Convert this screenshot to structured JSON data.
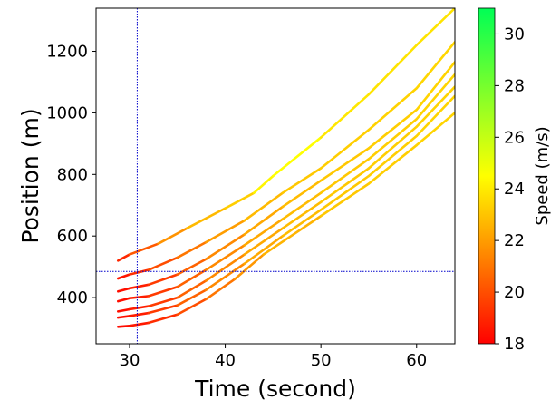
{
  "chart_data": {
    "type": "line",
    "title": "",
    "xlabel": "Time (second)",
    "ylabel": "Position (m)",
    "xlim": [
      26.5,
      64
    ],
    "ylim": [
      250,
      1340
    ],
    "x_ticks": [
      30,
      40,
      50,
      60
    ],
    "y_ticks": [
      400,
      600,
      800,
      1000,
      1200
    ],
    "grid": false,
    "reference_lines": {
      "vertical_x": 30.8,
      "horizontal_y": 485,
      "color": "#0000cc",
      "style": "dotted"
    },
    "colorbar": {
      "label": "Speed (m/s)",
      "range": [
        18,
        31
      ],
      "ticks": [
        18,
        20,
        22,
        24,
        26,
        28,
        30
      ],
      "colormap": [
        "#ff0000",
        "#ffff00",
        "#00ff55"
      ]
    },
    "series": [
      {
        "points": [
          [
            28.8,
            520
          ],
          [
            30,
            540
          ],
          [
            33,
            575
          ],
          [
            36,
            625
          ],
          [
            40,
            690
          ],
          [
            43,
            740
          ],
          [
            45,
            795
          ],
          [
            50,
            920
          ],
          [
            55,
            1060
          ],
          [
            60,
            1220
          ],
          [
            64,
            1340
          ]
        ],
        "speeds": [
          18.5,
          19.5,
          21,
          22.5,
          23,
          23.5,
          25,
          24,
          23.8,
          23.8,
          23.8
        ]
      },
      {
        "points": [
          [
            28.8,
            462
          ],
          [
            30,
            475
          ],
          [
            32,
            490
          ],
          [
            35,
            530
          ],
          [
            38,
            580
          ],
          [
            42,
            650
          ],
          [
            46,
            740
          ],
          [
            50,
            820
          ],
          [
            55,
            945
          ],
          [
            60,
            1080
          ],
          [
            64,
            1230
          ]
        ],
        "speeds": [
          18.2,
          18.8,
          19.5,
          20.5,
          21.5,
          22.5,
          23,
          23.2,
          23.3,
          23.4,
          23.5
        ]
      },
      {
        "points": [
          [
            28.8,
            420
          ],
          [
            30,
            430
          ],
          [
            32,
            442
          ],
          [
            35,
            475
          ],
          [
            38,
            525
          ],
          [
            42,
            605
          ],
          [
            46,
            695
          ],
          [
            50,
            780
          ],
          [
            55,
            885
          ],
          [
            60,
            1010
          ],
          [
            64,
            1165
          ]
        ],
        "speeds": [
          18.2,
          18.5,
          19,
          20,
          21,
          22,
          22.6,
          23,
          23.2,
          23.3,
          23.5
        ]
      },
      {
        "points": [
          [
            28.8,
            388
          ],
          [
            30,
            398
          ],
          [
            32,
            405
          ],
          [
            35,
            435
          ],
          [
            38,
            490
          ],
          [
            42,
            570
          ],
          [
            46,
            655
          ],
          [
            50,
            740
          ],
          [
            55,
            850
          ],
          [
            60,
            980
          ],
          [
            64,
            1125
          ]
        ],
        "speeds": [
          18.2,
          18.5,
          19,
          20,
          21,
          22,
          22.6,
          23,
          23.2,
          23.3,
          23.5
        ]
      },
      {
        "points": [
          [
            28.8,
            355
          ],
          [
            30,
            362
          ],
          [
            32,
            372
          ],
          [
            35,
            400
          ],
          [
            38,
            455
          ],
          [
            42,
            540
          ],
          [
            46,
            625
          ],
          [
            50,
            710
          ],
          [
            55,
            820
          ],
          [
            60,
            955
          ],
          [
            64,
            1085
          ]
        ],
        "speeds": [
          18.2,
          18.5,
          19,
          20,
          21,
          22,
          22.6,
          23,
          23.2,
          23.3,
          23.5
        ]
      },
      {
        "points": [
          [
            28.8,
            335
          ],
          [
            30,
            340
          ],
          [
            32,
            350
          ],
          [
            35,
            375
          ],
          [
            38,
            425
          ],
          [
            42,
            510
          ],
          [
            46,
            600
          ],
          [
            50,
            685
          ],
          [
            55,
            795
          ],
          [
            60,
            925
          ],
          [
            64,
            1055
          ]
        ],
        "speeds": [
          18.2,
          18.5,
          19,
          20,
          21,
          22,
          22.6,
          23,
          23.2,
          23.3,
          23.5
        ]
      },
      {
        "points": [
          [
            28.8,
            305
          ],
          [
            30,
            308
          ],
          [
            32,
            318
          ],
          [
            35,
            345
          ],
          [
            38,
            395
          ],
          [
            41,
            460
          ],
          [
            44,
            540
          ],
          [
            50,
            665
          ],
          [
            55,
            770
          ],
          [
            60,
            895
          ],
          [
            64,
            1000
          ]
        ],
        "speeds": [
          18.2,
          18.4,
          18.8,
          19.5,
          20.5,
          21.5,
          22.2,
          23,
          23.2,
          23.3,
          23.5
        ]
      }
    ]
  }
}
